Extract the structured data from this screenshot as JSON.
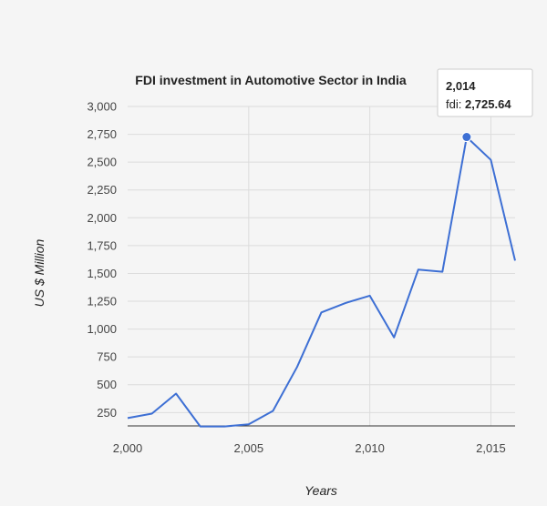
{
  "chart_data": {
    "type": "line",
    "title": "FDI investment in Automotive Sector in India",
    "xlabel": "Years",
    "ylabel": "US $ Million",
    "xlim": [
      2000,
      2016
    ],
    "ylim": [
      130,
      3000
    ],
    "x_ticks": [
      2000,
      2005,
      2010,
      2015
    ],
    "x_tick_labels": [
      "2,000",
      "2,005",
      "2,010",
      "2,015"
    ],
    "y_ticks": [
      250,
      500,
      750,
      1000,
      1250,
      1500,
      1750,
      2000,
      2250,
      2500,
      2750,
      3000
    ],
    "y_tick_labels": [
      "250",
      "500",
      "750",
      "1,000",
      "1,250",
      "1,500",
      "1,750",
      "2,000",
      "2,250",
      "2,500",
      "2,750",
      "3,000"
    ],
    "grid": true,
    "series": [
      {
        "name": "fdi",
        "color": "#3d6fd4",
        "x": [
          2000,
          2001,
          2002,
          2003,
          2004,
          2005,
          2006,
          2007,
          2008,
          2009,
          2010,
          2011,
          2012,
          2013,
          2014,
          2015,
          2016
        ],
        "values": [
          200,
          240,
          420,
          125,
          125,
          145,
          265,
          660,
          1150,
          1235,
          1300,
          925,
          1535,
          1515,
          2725.64,
          2520,
          1615
        ]
      }
    ],
    "tooltip": {
      "x_label": "2,014",
      "series_label": "fdi: ",
      "value_label": "2,725.64",
      "point_index": 14
    }
  }
}
